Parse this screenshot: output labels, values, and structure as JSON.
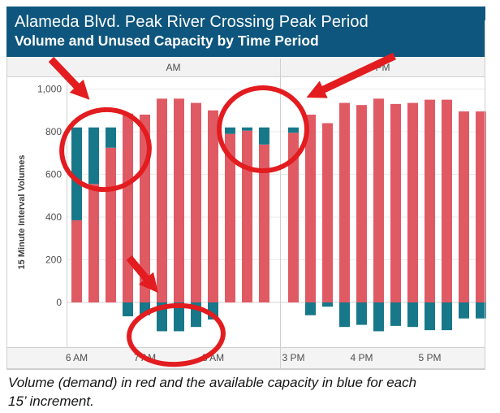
{
  "header": {
    "title": "Alameda Blvd. Peak River Crossing Peak Period",
    "subtitle": "Volume and Unused Capacity by Time Period"
  },
  "caption": {
    "text": "Volume (demand) in red and the available capacity in blue for each 15’ increment."
  },
  "colors": {
    "header_bg": "#0e567e",
    "volume_red": "#e05a64",
    "capacity_teal": "#17788a",
    "annotation_red": "#e31c1f",
    "strip_gray": "#f2f2f2",
    "gridline": "#ebebeb",
    "border": "#cfcfcf"
  },
  "chart_data": {
    "type": "bar",
    "stacked": true,
    "title": "Alameda Blvd. Peak River Crossing Peak Period",
    "subtitle": "Volume and Unused Capacity by Time Period",
    "xlabel": "",
    "ylabel": "15 Minute Interval Volumes",
    "ylim": [
      -215,
      1075
    ],
    "grid": true,
    "capacity_line": 820,
    "yticks": [
      {
        "value": 0,
        "label": "0"
      },
      {
        "value": 200,
        "label": "200"
      },
      {
        "value": 400,
        "label": "400"
      },
      {
        "value": 600,
        "label": "600"
      },
      {
        "value": 800,
        "label": "800"
      },
      {
        "value": 1000,
        "label": "1,000"
      }
    ],
    "series": [
      {
        "name": "Volume (demand)",
        "color": "#e05a64"
      },
      {
        "name": "Unused Capacity",
        "color": "#17788a"
      }
    ],
    "panels": [
      {
        "label": "AM",
        "xticks": [
          {
            "label": "6 AM",
            "bar": 0
          },
          {
            "label": "7 AM",
            "bar": 4
          },
          {
            "label": "8 AM",
            "bar": 8
          }
        ],
        "bars": [
          {
            "time": "6:00",
            "volume": 385,
            "unused": 435
          },
          {
            "time": "6:15",
            "volume": 555,
            "unused": 265
          },
          {
            "time": "6:30",
            "volume": 725,
            "unused": 95
          },
          {
            "time": "6:45",
            "volume": 885,
            "unused": -65
          },
          {
            "time": "7:00",
            "volume": 880,
            "unused": -60
          },
          {
            "time": "7:15",
            "volume": 955,
            "unused": -135
          },
          {
            "time": "7:30",
            "volume": 955,
            "unused": -135
          },
          {
            "time": "7:45",
            "volume": 935,
            "unused": -115
          },
          {
            "time": "8:00",
            "volume": 900,
            "unused": -80
          },
          {
            "time": "8:15",
            "volume": 790,
            "unused": 30
          },
          {
            "time": "8:30",
            "volume": 805,
            "unused": 15
          },
          {
            "time": "8:45",
            "volume": 740,
            "unused": 80
          }
        ]
      },
      {
        "label": "PM",
        "xticks": [
          {
            "label": "3 PM",
            "bar": 0
          },
          {
            "label": "4 PM",
            "bar": 4
          },
          {
            "label": "5 PM",
            "bar": 8
          }
        ],
        "bars": [
          {
            "time": "3:00",
            "volume": 795,
            "unused": 25
          },
          {
            "time": "3:15",
            "volume": 880,
            "unused": -60
          },
          {
            "time": "3:30",
            "volume": 840,
            "unused": -20
          },
          {
            "time": "3:45",
            "volume": 935,
            "unused": -115
          },
          {
            "time": "4:00",
            "volume": 925,
            "unused": -105
          },
          {
            "time": "4:15",
            "volume": 955,
            "unused": -135
          },
          {
            "time": "4:30",
            "volume": 930,
            "unused": -110
          },
          {
            "time": "4:45",
            "volume": 935,
            "unused": -115
          },
          {
            "time": "5:00",
            "volume": 950,
            "unused": -130
          },
          {
            "time": "5:15",
            "volume": 950,
            "unused": -130
          },
          {
            "time": "5:30",
            "volume": 895,
            "unused": -75
          },
          {
            "time": "5:45",
            "volume": 895,
            "unused": -75
          }
        ]
      }
    ]
  },
  "annotations": {
    "items": [
      {
        "name": "annotation-circle-am-early-capacity",
        "kind": "ellipse"
      },
      {
        "name": "annotation-circle-midday-capacity",
        "kind": "ellipse"
      },
      {
        "name": "annotation-circle-am-over-capacity",
        "kind": "ellipse"
      },
      {
        "name": "annotation-arrow-to-am-early",
        "kind": "arrow"
      },
      {
        "name": "annotation-arrow-to-midday",
        "kind": "arrow"
      },
      {
        "name": "annotation-arrow-to-negative-bars",
        "kind": "arrow"
      }
    ]
  }
}
